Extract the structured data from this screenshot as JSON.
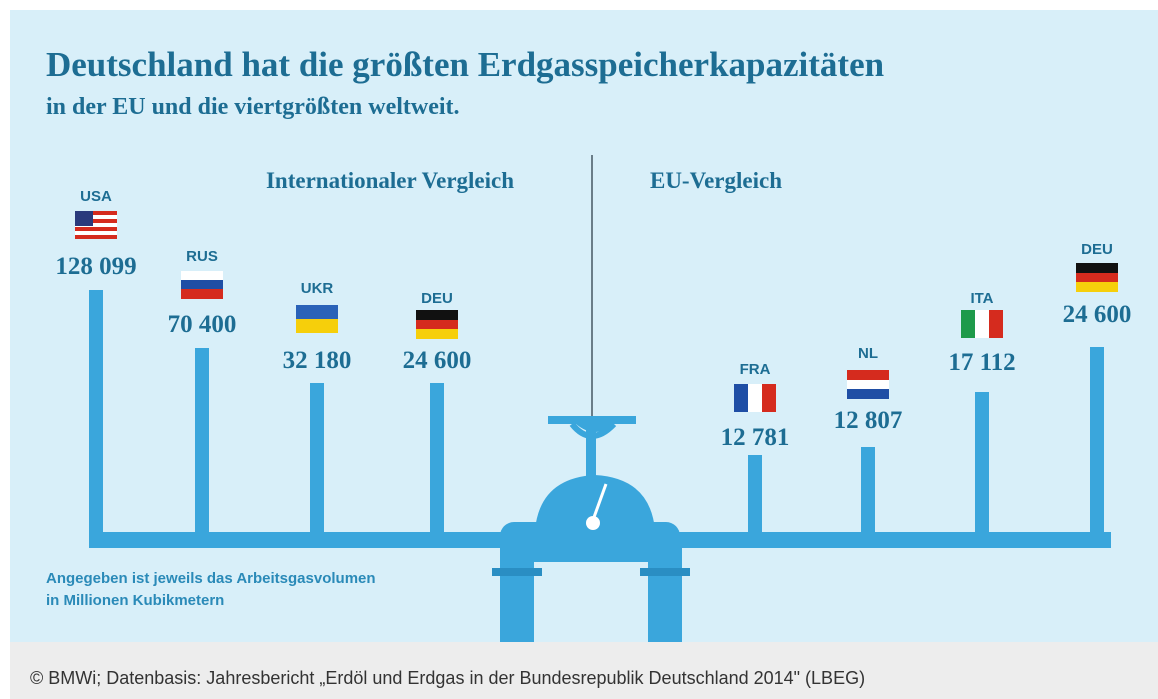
{
  "header": {
    "title": "Deutschland hat die größten Erdgasspeicherkapazitäten",
    "subtitle": "in der EU und die viertgrößten weltweit."
  },
  "sections": [
    {
      "title": "Internationaler Vergleich",
      "items": [
        {
          "code": "USA",
          "value": "128 099"
        },
        {
          "code": "RUS",
          "value": "70 400"
        },
        {
          "code": "UKR",
          "value": "32 180"
        },
        {
          "code": "DEU",
          "value": "24 600"
        }
      ]
    },
    {
      "title": "EU-Vergleich",
      "items": [
        {
          "code": "FRA",
          "value": "12 781"
        },
        {
          "code": "NL",
          "value": "12 807"
        },
        {
          "code": "ITA",
          "value": "17 112"
        },
        {
          "code": "DEU",
          "value": "24 600"
        }
      ]
    }
  ],
  "note": [
    "Angegeben ist jeweils das Arbeitsgasvolumen",
    "in Millionen Kubikmetern"
  ],
  "caption": "© BMWi; Datenbasis: Jahresbericht „Erdöl und Erdgas in der Bundesrepublik Deutschland 2014\" (LBEG)"
}
